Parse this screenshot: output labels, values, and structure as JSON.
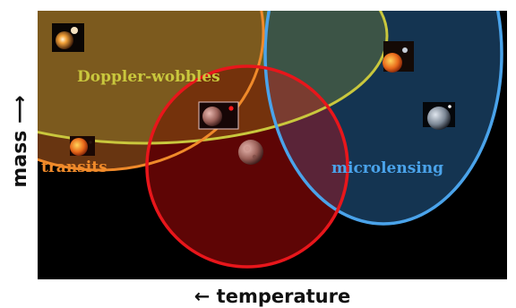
{
  "axes": {
    "x_label": "← temperature",
    "y_label": "mass ⟶"
  },
  "regions": {
    "doppler": {
      "label": "Doppler-wobbles",
      "color": "#c9c73d"
    },
    "transits": {
      "label": "transits",
      "color": "#f08a2a"
    },
    "microlensing": {
      "label": "microlensing",
      "color": "#4aa3ea"
    },
    "habitable": {
      "color": "#e8161b"
    }
  },
  "colors": {
    "background": "#000000",
    "doppler_fill": "#6a6420",
    "microlensing_fill": "#143451",
    "habitable_fill": "#5e0505"
  }
}
